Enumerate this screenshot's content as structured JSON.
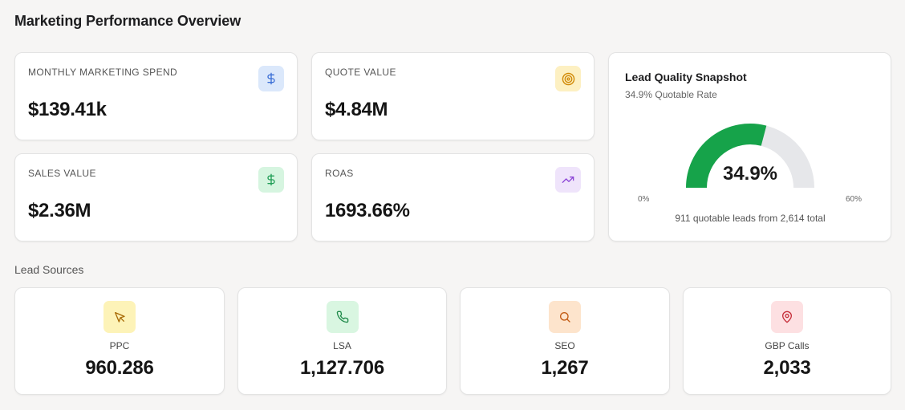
{
  "page": {
    "title": "Marketing Performance Overview"
  },
  "kpis": {
    "monthly_spend": {
      "label": "MONTHLY MARKETING SPEND",
      "value": "$139.41k",
      "icon": "dollar-icon",
      "icon_bg": "#dbe8fb",
      "icon_color": "#3b6fd6"
    },
    "quote_value": {
      "label": "QUOTE VALUE",
      "value": "$4.84M",
      "icon": "target-icon",
      "icon_bg": "#fdf0c2",
      "icon_color": "#d18a08"
    },
    "sales_value": {
      "label": "SALES VALUE",
      "value": "$2.36M",
      "icon": "dollar-icon",
      "icon_bg": "#d6f5e0",
      "icon_color": "#1f9d55"
    },
    "roas": {
      "label": "ROAS",
      "value": "1693.66%",
      "icon": "trending-up-icon",
      "icon_bg": "#efe4fb",
      "icon_color": "#8b45d6"
    }
  },
  "lead_quality": {
    "title": "Lead Quality Snapshot",
    "subtitle": "34.9% Quotable Rate",
    "value_text": "34.9%",
    "value": 34.9,
    "max": 60,
    "min_label": "0%",
    "max_label": "60%",
    "footnote": "911 quotable leads from 2,614 total",
    "fill_color": "#16a34a",
    "track_color": "#e6e7ea"
  },
  "lead_sources": {
    "section_label": "Lead Sources",
    "items": [
      {
        "label": "PPC",
        "value": "960.286",
        "icon": "cursor-icon",
        "icon_bg": "#fdf3b8",
        "icon_color": "#a86a05"
      },
      {
        "label": "LSA",
        "value": "1,127.706",
        "icon": "phone-icon",
        "icon_bg": "#d9f6e1",
        "icon_color": "#1f8a4a"
      },
      {
        "label": "SEO",
        "value": "1,267",
        "icon": "search-icon",
        "icon_bg": "#fde4cc",
        "icon_color": "#c25a12"
      },
      {
        "label": "GBP Calls",
        "value": "2,033",
        "icon": "map-pin-icon",
        "icon_bg": "#fde0e2",
        "icon_color": "#c62f3a"
      }
    ]
  }
}
